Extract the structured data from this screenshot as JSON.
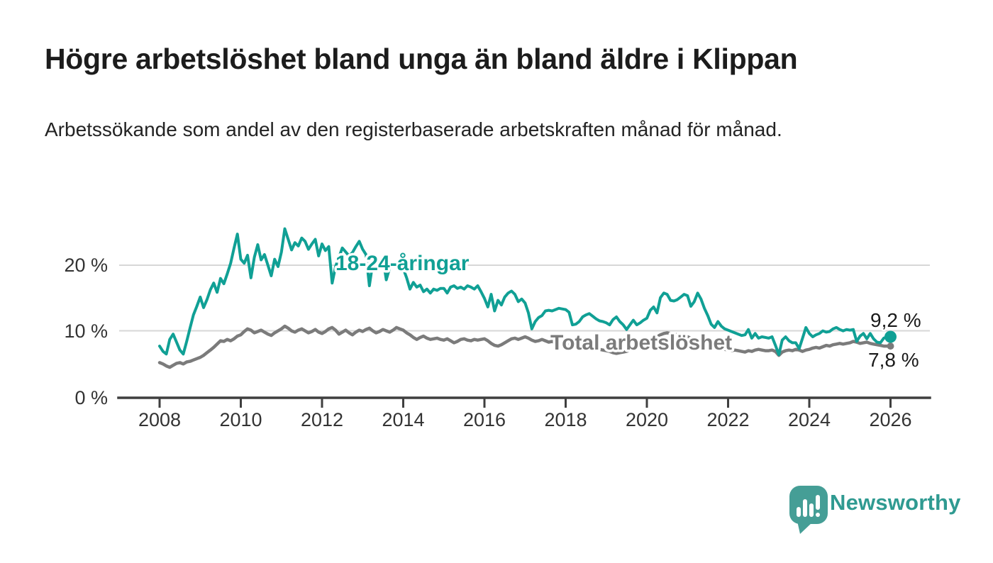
{
  "header": {
    "title": "Högre arbetslöshet bland unga än bland äldre i Klippan",
    "subtitle": "Arbetssökande som andel av den registerbaserade arbetskraften månad för månad."
  },
  "chart_data": {
    "type": "line",
    "title": "Högre arbetslöshet bland unga än bland äldre i Klippan",
    "xlabel": "",
    "ylabel": "Arbetssökande som andel av den registerbaserade arbetskraften",
    "unit": "%",
    "frequency": "monthly",
    "start": "2008-01",
    "end": "2026-01",
    "ylim": [
      0,
      27
    ],
    "grid": "horizontal",
    "x_tick_labels": [
      "2008",
      "2010",
      "2012",
      "2014",
      "2016",
      "2018",
      "2020",
      "2022",
      "2024",
      "2026"
    ],
    "y_tick_labels": [
      "0 %",
      "10 %",
      "20 %"
    ],
    "colors": {
      "young": "#10a095",
      "total": "#7b7b7b",
      "grid": "#d7d7d7",
      "axis": "#3f3f3f",
      "text": "#333333"
    },
    "series": [
      {
        "name": "18-24-åringar",
        "color": "#10a095",
        "end_label": "9,2 %",
        "latest_value": 9.2,
        "values": [
          7.8,
          7.0,
          6.6,
          8.8,
          9.6,
          8.4,
          7.2,
          6.6,
          8.5,
          10.5,
          12.5,
          13.8,
          15.2,
          13.6,
          14.8,
          16.3,
          17.3,
          15.9,
          18.0,
          17.2,
          18.7,
          20.3,
          22.6,
          24.7,
          20.9,
          20.3,
          21.5,
          18.1,
          21.2,
          23.1,
          20.8,
          21.6,
          20.0,
          18.4,
          20.9,
          19.8,
          22.0,
          25.5,
          23.9,
          22.3,
          23.4,
          22.9,
          24.1,
          23.6,
          22.4,
          23.2,
          23.9,
          21.4,
          23.2,
          22.2,
          22.8,
          17.3,
          19.8,
          21.2,
          22.6,
          22.0,
          21.4,
          21.9,
          22.8,
          23.6,
          22.4,
          21.6,
          16.9,
          20.4,
          21.0,
          20.5,
          21.1,
          17.8,
          19.6,
          20.2,
          19.7,
          20.3,
          19.5,
          18.1,
          16.4,
          17.4,
          16.7,
          17.0,
          16.0,
          16.4,
          15.8,
          16.4,
          16.2,
          16.5,
          16.5,
          15.8,
          16.7,
          16.9,
          16.5,
          16.7,
          16.4,
          16.9,
          16.7,
          16.4,
          16.9,
          16.0,
          15.0,
          13.7,
          15.6,
          13.1,
          14.7,
          14.0,
          15.2,
          15.8,
          16.1,
          15.6,
          14.5,
          14.9,
          14.3,
          12.8,
          10.4,
          11.5,
          12.1,
          12.4,
          13.1,
          13.2,
          13.1,
          13.3,
          13.5,
          13.4,
          13.3,
          12.9,
          11.0,
          11.1,
          11.5,
          12.2,
          12.5,
          12.7,
          12.3,
          11.9,
          11.6,
          11.5,
          11.3,
          11.0,
          11.8,
          12.2,
          11.5,
          11.0,
          10.3,
          11.0,
          11.7,
          11.0,
          11.3,
          11.7,
          12.0,
          13.2,
          13.7,
          12.8,
          15.1,
          15.8,
          15.6,
          14.7,
          14.6,
          14.8,
          15.2,
          15.6,
          15.4,
          13.8,
          14.5,
          15.8,
          14.9,
          13.5,
          12.4,
          11.1,
          10.6,
          11.5,
          10.8,
          10.4,
          10.2,
          10.0,
          9.8,
          9.6,
          9.4,
          9.5,
          10.3,
          9.0,
          9.7,
          9.0,
          9.2,
          9.1,
          9.0,
          9.2,
          7.9,
          6.5,
          8.7,
          9.2,
          8.6,
          8.3,
          8.3,
          7.4,
          9.0,
          10.6,
          9.7,
          9.2,
          9.5,
          9.7,
          10.1,
          9.9,
          10.0,
          10.4,
          10.6,
          10.3,
          10.1,
          10.3,
          10.2,
          10.3,
          8.5,
          9.3,
          9.7,
          8.9,
          9.7,
          8.9,
          8.4,
          8.3,
          9.0,
          9.2,
          9.2
        ]
      },
      {
        "name": "Total arbetslöshet",
        "color": "#7b7b7b",
        "end_label": "7,8 %",
        "latest_value": 7.8,
        "values": [
          5.3,
          5.1,
          4.8,
          4.6,
          4.9,
          5.2,
          5.3,
          5.1,
          5.4,
          5.5,
          5.7,
          5.9,
          6.1,
          6.4,
          6.8,
          7.2,
          7.6,
          8.1,
          8.6,
          8.5,
          8.8,
          8.6,
          8.9,
          9.3,
          9.5,
          10.0,
          10.4,
          10.2,
          9.8,
          10.0,
          10.2,
          9.9,
          9.6,
          9.4,
          9.8,
          10.1,
          10.4,
          10.8,
          10.5,
          10.1,
          9.9,
          10.2,
          10.4,
          10.1,
          9.8,
          10.0,
          10.3,
          9.9,
          9.7,
          10.0,
          10.4,
          10.6,
          10.2,
          9.6,
          9.9,
          10.2,
          9.8,
          9.5,
          9.9,
          10.2,
          10.0,
          10.3,
          10.5,
          10.1,
          9.8,
          10.0,
          10.3,
          10.1,
          9.9,
          10.2,
          10.6,
          10.4,
          10.2,
          9.8,
          9.5,
          9.1,
          8.8,
          9.1,
          9.3,
          9.0,
          8.8,
          8.9,
          9.0,
          8.8,
          8.7,
          8.9,
          8.6,
          8.3,
          8.5,
          8.8,
          8.9,
          8.7,
          8.6,
          8.8,
          8.7,
          8.8,
          8.9,
          8.6,
          8.2,
          7.9,
          7.8,
          8.0,
          8.3,
          8.6,
          8.9,
          9.0,
          8.8,
          9.0,
          9.2,
          9.0,
          8.7,
          8.5,
          8.6,
          8.8,
          8.6,
          8.4,
          8.5,
          8.3,
          8.2,
          8.3,
          8.1,
          8.0,
          7.8,
          7.7,
          7.8,
          7.9,
          7.8,
          7.6,
          7.5,
          7.4,
          7.3,
          7.2,
          7.1,
          7.0,
          6.8,
          6.7,
          6.8,
          6.9,
          7.0,
          7.2,
          7.4,
          7.6,
          7.8,
          8.0,
          8.3,
          8.6,
          8.9,
          9.2,
          9.5,
          9.7,
          9.8,
          9.7,
          9.6,
          9.5,
          9.4,
          9.3,
          9.2,
          9.0,
          8.8,
          8.6,
          8.4,
          8.2,
          8.0,
          7.8,
          7.6,
          7.5,
          7.4,
          7.3,
          7.2,
          7.1,
          7.2,
          7.1,
          7.0,
          6.9,
          7.1,
          7.0,
          7.2,
          7.3,
          7.2,
          7.1,
          7.1,
          7.2,
          7.0,
          6.4,
          6.9,
          7.1,
          7.2,
          7.1,
          7.3,
          7.2,
          7.0,
          7.2,
          7.3,
          7.5,
          7.6,
          7.5,
          7.7,
          7.9,
          7.8,
          8.0,
          8.1,
          8.2,
          8.1,
          8.2,
          8.3,
          8.5,
          8.4,
          8.2,
          8.3,
          8.4,
          8.2,
          8.1,
          8.0,
          7.9,
          7.8,
          7.8,
          7.8
        ]
      }
    ]
  },
  "footer": {
    "brand": "Newsworthy",
    "logo_color": "#459e96"
  }
}
